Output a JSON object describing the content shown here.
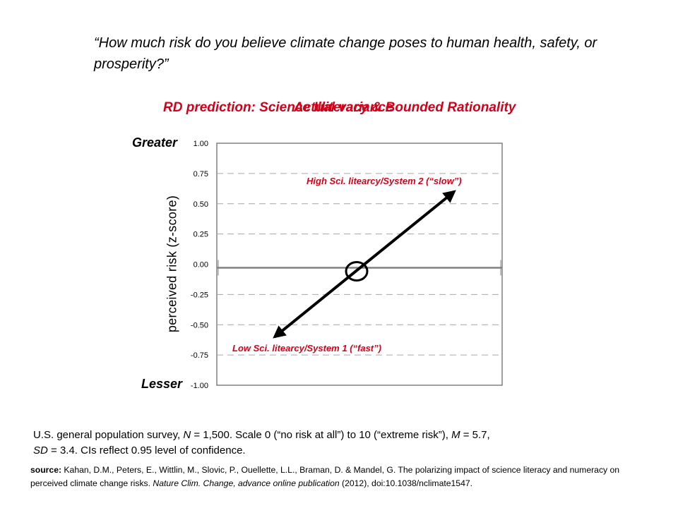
{
  "question": "“How much risk do you believe climate change poses to human health, safety, or prosperity?”",
  "titles": {
    "rd_prediction": "RD prediction: Science Illiteracy & Bounded Rationality",
    "actual_overlay": "Actual variance"
  },
  "end_labels": {
    "top": "Greater",
    "bottom": "Lesser"
  },
  "chart_data": {
    "type": "line",
    "ylabel": "perceived risk (z-score)",
    "ylim": [
      -1.0,
      1.0
    ],
    "yticks": [
      "1.00",
      "0.75",
      "0.50",
      "0.25",
      "0.00",
      "-0.25",
      "-0.50",
      "-0.75",
      "-1.00"
    ],
    "ytick_values": [
      1.0,
      0.75,
      0.5,
      0.25,
      0.0,
      -0.25,
      -0.5,
      -0.75,
      -1.0
    ],
    "grid": true,
    "line": {
      "start_y": -0.6,
      "end_y": 0.6,
      "arrows": "both",
      "color": "#000000"
    },
    "annotations": [
      {
        "text": "High Sci. litearcy/System 2 (“slow”)",
        "color": "#d0021b"
      },
      {
        "text": "Low Sci. litearcy/System 1 (“fast”)",
        "color": "#d0021b"
      }
    ],
    "center_marker": {
      "y": 0.0,
      "shape": "circle"
    }
  },
  "footnote": {
    "survey_prefix": "U.S. general population survey, ",
    "n_label": "N",
    "survey_mid": " = 1,500.  Scale 0 (“no risk at all”) to 10 (“extreme risk”), ",
    "m_label": "M",
    "survey_m": " = 5.7,",
    "sd_label": "SD",
    "survey_end": " = 3.4. CIs reflect 0.95 level of confidence."
  },
  "source": {
    "label": "source:",
    "text1": " Kahan, D.M., Peters, E., Wittlin, M., Slovic, P., Ouellette, L.L., Braman, D. & Mandel, G. The polarizing impact of science literacy and numeracy on perceived climate change risks. ",
    "journal": "Nature Clim. Change,  advance online publication",
    "text2": " (2012), doi:10.1038/nclimate1547."
  },
  "colors": {
    "accent": "#d0021b",
    "grid": "#a6a6a6",
    "axis": "#808080"
  }
}
